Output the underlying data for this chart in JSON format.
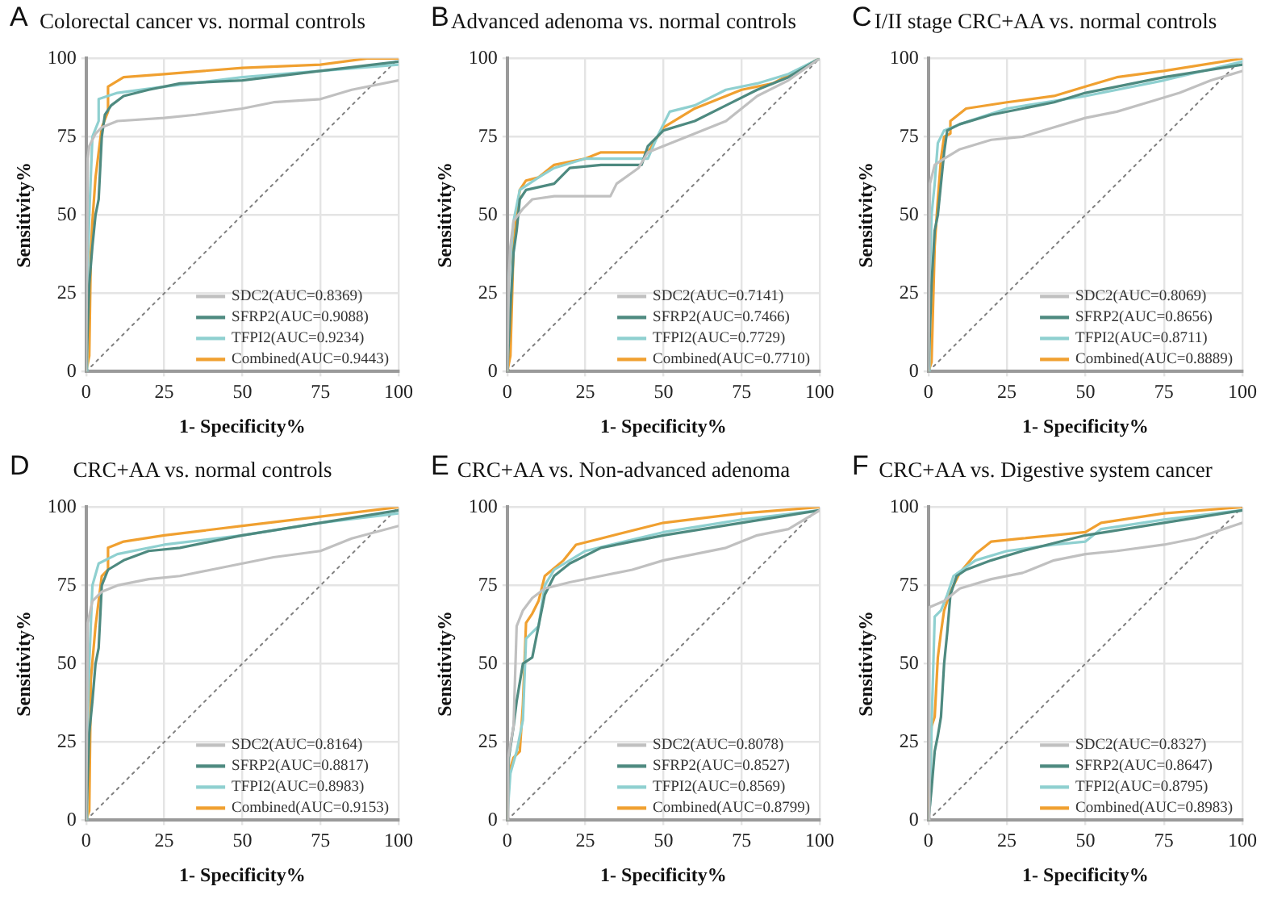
{
  "chart_data": [
    {
      "type": "line",
      "title": "Colorectal cancer vs. normal controls",
      "annotations": [
        "A"
      ],
      "xlabel": "1- Specificity%",
      "ylabel": "Sensitivity%",
      "xlim": [
        0,
        100
      ],
      "ylim": [
        0,
        100
      ],
      "xticks": [
        0,
        25,
        50,
        75,
        100
      ],
      "yticks": [
        0,
        25,
        50,
        75,
        100
      ],
      "grid": true,
      "legend": "bottom right",
      "marker": "none",
      "series": [
        {
          "name": "SDC2(AUC=0.8369)",
          "color": "#c0c0c0",
          "x": [
            0,
            0.5,
            1,
            3,
            5,
            10,
            25,
            35,
            50,
            60,
            75,
            85,
            100
          ],
          "values": [
            0,
            68,
            72,
            76,
            78,
            80,
            81,
            82,
            84,
            86,
            87,
            90,
            93
          ]
        },
        {
          "name": "SFRP2(AUC=0.9088)",
          "color": "#4e8a80",
          "x": [
            0,
            1,
            2,
            3,
            4,
            5,
            6,
            8,
            12,
            20,
            30,
            50,
            75,
            100
          ],
          "values": [
            0,
            28,
            40,
            50,
            55,
            75,
            82,
            85,
            88,
            90,
            92,
            93,
            96,
            99
          ]
        },
        {
          "name": "TFPI2(AUC=0.9234)",
          "color": "#8fd0d0",
          "x": [
            0,
            0.3,
            1,
            2,
            4,
            4,
            10,
            25,
            50,
            75,
            100
          ],
          "values": [
            0,
            25,
            50,
            75,
            80,
            87,
            89,
            91,
            94,
            96,
            98
          ]
        },
        {
          "name": "Combined(AUC=0.9443)",
          "color": "#f0a030",
          "x": [
            0,
            1,
            1.5,
            2,
            3,
            4,
            5,
            7,
            7,
            12,
            25,
            50,
            75,
            90,
            100
          ],
          "values": [
            0,
            5,
            38,
            48,
            62,
            70,
            78,
            83,
            91,
            94,
            95,
            97,
            98,
            100,
            100
          ]
        },
        {
          "color": "#808080",
          "line_style": "dotted",
          "x": [
            0,
            100
          ],
          "values": [
            0,
            100
          ]
        }
      ]
    },
    {
      "type": "line",
      "title": "Advanced adenoma vs. normal controls",
      "annotations": [
        "B"
      ],
      "xlabel": "1- Specificity%",
      "ylabel": "Sensitivity%",
      "xlim": [
        0,
        100
      ],
      "ylim": [
        0,
        100
      ],
      "xticks": [
        0,
        25,
        50,
        75,
        100
      ],
      "yticks": [
        0,
        25,
        50,
        75,
        100
      ],
      "grid": true,
      "legend": "bottom right",
      "marker": "none",
      "series": [
        {
          "name": "SDC2(AUC=0.7141)",
          "color": "#c0c0c0",
          "x": [
            0,
            0.5,
            1,
            2,
            5,
            8,
            15,
            33,
            35,
            42,
            45,
            50,
            60,
            70,
            80,
            90,
            100
          ],
          "values": [
            0,
            30,
            40,
            48,
            52,
            55,
            56,
            56,
            60,
            65,
            70,
            72,
            76,
            80,
            88,
            93,
            100
          ]
        },
        {
          "name": "SFRP2(AUC=0.7466)",
          "color": "#4e8a80",
          "x": [
            0,
            1,
            2,
            3,
            4,
            6,
            15,
            20,
            30,
            43,
            45,
            50,
            60,
            70,
            80,
            90,
            100
          ],
          "values": [
            0,
            20,
            38,
            45,
            55,
            58,
            60,
            65,
            66,
            66,
            72,
            77,
            80,
            85,
            90,
            94,
            100
          ]
        },
        {
          "name": "TFPI2(AUC=0.7729)",
          "color": "#8fd0d0",
          "x": [
            0,
            0.5,
            2,
            4,
            10,
            15,
            25,
            45,
            48,
            52,
            60,
            70,
            80,
            90,
            100
          ],
          "values": [
            0,
            30,
            48,
            58,
            62,
            65,
            68,
            68,
            75,
            83,
            85,
            90,
            92,
            95,
            100
          ]
        },
        {
          "name": "Combined(AUC=0.7710)",
          "color": "#f0a030",
          "x": [
            0,
            1,
            2,
            3,
            4,
            6,
            10,
            15,
            25,
            30,
            45,
            50,
            60,
            70,
            75,
            85,
            100
          ],
          "values": [
            0,
            5,
            40,
            50,
            58,
            61,
            62,
            66,
            68,
            70,
            70,
            78,
            84,
            88,
            90,
            92,
            100
          ]
        },
        {
          "color": "#808080",
          "line_style": "dotted",
          "x": [
            0,
            100
          ],
          "values": [
            0,
            100
          ]
        }
      ]
    },
    {
      "type": "line",
      "title": "I/II stage CRC+AA vs. normal controls",
      "annotations": [
        "C"
      ],
      "xlabel": "1- Specificity%",
      "ylabel": "Sensitivity%",
      "xlim": [
        0,
        100
      ],
      "ylim": [
        0,
        100
      ],
      "xticks": [
        0,
        25,
        50,
        75,
        100
      ],
      "yticks": [
        0,
        25,
        50,
        75,
        100
      ],
      "grid": true,
      "legend": "bottom right",
      "marker": "none",
      "series": [
        {
          "name": "SDC2(AUC=0.8069)",
          "color": "#c0c0c0",
          "x": [
            0,
            0.5,
            2,
            5,
            10,
            20,
            30,
            40,
            50,
            60,
            70,
            80,
            90,
            100
          ],
          "values": [
            0,
            60,
            66,
            68,
            71,
            74,
            75,
            78,
            81,
            83,
            86,
            89,
            93,
            96
          ]
        },
        {
          "name": "SFRP2(AUC=0.8656)",
          "color": "#4e8a80",
          "x": [
            0,
            1,
            2,
            3,
            5,
            6,
            10,
            20,
            30,
            40,
            50,
            60,
            75,
            100
          ],
          "values": [
            0,
            28,
            45,
            50,
            70,
            77,
            79,
            82,
            84,
            86,
            89,
            91,
            94,
            98
          ]
        },
        {
          "name": "TFPI2(AUC=0.8711)",
          "color": "#8fd0d0",
          "x": [
            0,
            0.3,
            1,
            2,
            3,
            5,
            10,
            25,
            50,
            75,
            100
          ],
          "values": [
            0,
            25,
            50,
            60,
            73,
            77,
            79,
            84,
            88,
            93,
            99
          ]
        },
        {
          "name": "Combined(AUC=0.8889)",
          "color": "#f0a030",
          "x": [
            0,
            1,
            2,
            3,
            4,
            5,
            7,
            7,
            12,
            25,
            40,
            50,
            60,
            75,
            100
          ],
          "values": [
            0,
            3,
            40,
            55,
            68,
            75,
            76,
            80,
            84,
            86,
            88,
            91,
            94,
            96,
            100
          ]
        },
        {
          "color": "#808080",
          "line_style": "dotted",
          "x": [
            0,
            100
          ],
          "values": [
            0,
            100
          ]
        }
      ]
    },
    {
      "type": "line",
      "title": "CRC+AA vs. normal controls",
      "annotations": [
        "D"
      ],
      "xlabel": "1- Specificity%",
      "ylabel": "Sensitivity%",
      "xlim": [
        0,
        100
      ],
      "ylim": [
        0,
        100
      ],
      "xticks": [
        0,
        25,
        50,
        75,
        100
      ],
      "yticks": [
        0,
        25,
        50,
        75,
        100
      ],
      "grid": true,
      "legend": "bottom right",
      "marker": "none",
      "series": [
        {
          "name": "SDC2(AUC=0.8164)",
          "color": "#c0c0c0",
          "x": [
            0,
            0.5,
            2,
            5,
            10,
            20,
            30,
            40,
            50,
            60,
            75,
            85,
            100
          ],
          "values": [
            0,
            63,
            70,
            73,
            75,
            77,
            78,
            80,
            82,
            84,
            86,
            90,
            94
          ]
        },
        {
          "name": "SFRP2(AUC=0.8817)",
          "color": "#4e8a80",
          "x": [
            0,
            1,
            2,
            3,
            4,
            5,
            7,
            12,
            20,
            30,
            50,
            75,
            100
          ],
          "values": [
            0,
            28,
            38,
            50,
            55,
            75,
            80,
            83,
            86,
            87,
            91,
            95,
            99
          ]
        },
        {
          "name": "TFPI2(AUC=0.8983)",
          "color": "#8fd0d0",
          "x": [
            0,
            0.3,
            1,
            2,
            4,
            10,
            25,
            50,
            75,
            100
          ],
          "values": [
            0,
            25,
            50,
            75,
            82,
            85,
            88,
            91,
            95,
            98
          ]
        },
        {
          "name": "Combined(AUC=0.9153)",
          "color": "#f0a030",
          "x": [
            0,
            1,
            1.5,
            3,
            4,
            5,
            7,
            7,
            12,
            25,
            50,
            75,
            100
          ],
          "values": [
            0,
            3,
            45,
            62,
            70,
            78,
            80,
            87,
            89,
            91,
            94,
            97,
            100
          ]
        },
        {
          "color": "#808080",
          "line_style": "dotted",
          "x": [
            0,
            100
          ],
          "values": [
            0,
            100
          ]
        }
      ]
    },
    {
      "type": "line",
      "title": "CRC+AA vs. Non-advanced adenoma",
      "annotations": [
        "E"
      ],
      "xlabel": "1- Specificity%",
      "ylabel": "Sensitivity%",
      "xlim": [
        0,
        100
      ],
      "ylim": [
        0,
        100
      ],
      "xticks": [
        0,
        25,
        50,
        75,
        100
      ],
      "yticks": [
        0,
        25,
        50,
        75,
        100
      ],
      "grid": true,
      "legend": "bottom right",
      "marker": "none",
      "series": [
        {
          "name": "SDC2(AUC=0.8078)",
          "color": "#c0c0c0",
          "x": [
            0,
            0.3,
            2,
            3,
            5,
            8,
            12,
            20,
            30,
            40,
            50,
            60,
            70,
            80,
            90,
            100
          ],
          "values": [
            0,
            20,
            30,
            62,
            67,
            71,
            74,
            76,
            78,
            80,
            83,
            85,
            87,
            91,
            93,
            99
          ]
        },
        {
          "name": "SFRP2(AUC=0.8527)",
          "color": "#4e8a80",
          "x": [
            0,
            0.5,
            2,
            3,
            4,
            5,
            8,
            10,
            12,
            15,
            20,
            30,
            50,
            75,
            100
          ],
          "values": [
            0,
            20,
            30,
            38,
            44,
            50,
            52,
            62,
            72,
            78,
            82,
            87,
            91,
            95,
            99
          ]
        },
        {
          "name": "TFPI2(AUC=0.8569)",
          "color": "#8fd0d0",
          "x": [
            0,
            0.5,
            1,
            3,
            5,
            6,
            10,
            12,
            15,
            25,
            50,
            75,
            100
          ],
          "values": [
            0,
            8,
            15,
            22,
            32,
            58,
            62,
            75,
            80,
            86,
            92,
            96,
            99
          ]
        },
        {
          "name": "Combined(AUC=0.8799)",
          "color": "#f0a030",
          "x": [
            0,
            0.5,
            2,
            4,
            5,
            6,
            8,
            10,
            12,
            18,
            22,
            30,
            50,
            75,
            100
          ],
          "values": [
            0,
            15,
            20,
            22,
            37,
            63,
            66,
            70,
            78,
            83,
            88,
            90,
            95,
            98,
            100
          ]
        },
        {
          "color": "#808080",
          "line_style": "dotted",
          "x": [
            0,
            100
          ],
          "values": [
            0,
            100
          ]
        }
      ]
    },
    {
      "type": "line",
      "title": "CRC+AA vs. Digestive system cancer",
      "annotations": [
        "F"
      ],
      "xlabel": "1- Specificity%",
      "ylabel": "Sensitivity%",
      "xlim": [
        0,
        100
      ],
      "ylim": [
        0,
        100
      ],
      "xticks": [
        0,
        25,
        50,
        75,
        100
      ],
      "yticks": [
        0,
        25,
        50,
        75,
        100
      ],
      "grid": true,
      "legend": "bottom right",
      "marker": "none",
      "series": [
        {
          "name": "SDC2(AUC=0.8327)",
          "color": "#c0c0c0",
          "x": [
            0,
            0.3,
            5,
            10,
            20,
            30,
            40,
            50,
            60,
            75,
            85,
            100
          ],
          "values": [
            0,
            68,
            70,
            74,
            77,
            79,
            83,
            85,
            86,
            88,
            90,
            95
          ]
        },
        {
          "name": "SFRP2(AUC=0.8647)",
          "color": "#4e8a80",
          "x": [
            0,
            1,
            2,
            3,
            4,
            5,
            6,
            7,
            9,
            12,
            20,
            30,
            50,
            75,
            100
          ],
          "values": [
            0,
            10,
            22,
            27,
            33,
            50,
            60,
            72,
            78,
            80,
            83,
            86,
            91,
            95,
            99
          ]
        },
        {
          "name": "TFPI2(AUC=0.8795)",
          "color": "#8fd0d0",
          "x": [
            0,
            0.5,
            1,
            2,
            4,
            6,
            8,
            15,
            25,
            40,
            50,
            55,
            75,
            100
          ],
          "values": [
            0,
            5,
            30,
            65,
            67,
            72,
            78,
            83,
            86,
            88,
            89,
            93,
            96,
            99
          ]
        },
        {
          "name": "Combined(AUC=0.8983)",
          "color": "#f0a030",
          "x": [
            0,
            1,
            2,
            3,
            4,
            5,
            7,
            10,
            15,
            20,
            30,
            50,
            55,
            75,
            100
          ],
          "values": [
            0,
            30,
            33,
            52,
            60,
            67,
            73,
            79,
            85,
            89,
            90,
            92,
            95,
            98,
            100
          ]
        },
        {
          "color": "#808080",
          "line_style": "dotted",
          "x": [
            0,
            100
          ],
          "values": [
            0,
            100
          ]
        }
      ]
    }
  ]
}
